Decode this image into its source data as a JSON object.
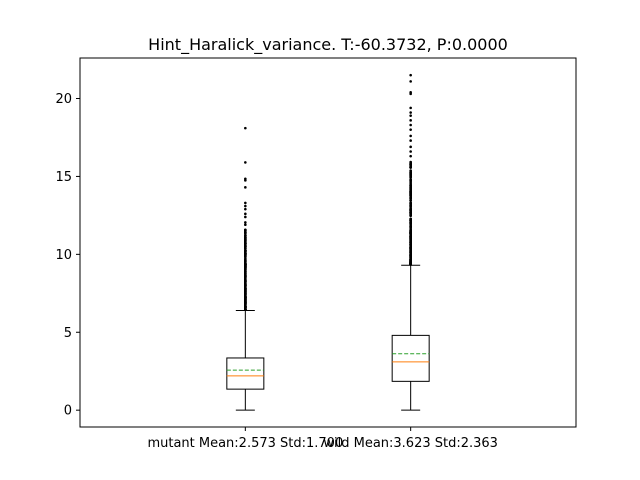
{
  "chart_data": {
    "type": "box",
    "title": "Hint_Haralick_variance. T:-60.3732, P:0.0000",
    "xlabel": "",
    "ylabel": "",
    "ylim": [
      -1.08,
      22.6
    ],
    "y_ticks": [
      0,
      5,
      10,
      15,
      20
    ],
    "y_tick_labels": [
      "0",
      "5",
      "10",
      "15",
      "20"
    ],
    "grid": false,
    "categories": [
      "mutant Mean:2.573 Std:1.700",
      "wild Mean:3.623 Std:2.363"
    ],
    "boxes": [
      {
        "category": "mutant Mean:2.573 Std:1.700",
        "whisker_low": 0.0,
        "q1": 1.35,
        "median": 2.2,
        "q3": 3.35,
        "whisker_high": 6.4,
        "mean": 2.573,
        "std": 1.7,
        "outlier_range": [
          6.45,
          11.6
        ],
        "sparse_outliers": [
          11.9,
          12.05,
          12.4,
          12.6,
          12.9,
          13.1,
          13.3,
          14.3,
          14.75,
          14.85,
          15.9,
          18.1
        ]
      },
      {
        "category": "wild Mean:3.623 Std:2.363",
        "whisker_low": 0.0,
        "q1": 1.85,
        "median": 3.1,
        "q3": 4.8,
        "whisker_high": 9.3,
        "mean": 3.623,
        "std": 2.363,
        "outlier_range": [
          9.35,
          16.0
        ],
        "sparse_outliers": [
          16.3,
          16.6,
          16.9,
          17.3,
          17.6,
          18.0,
          18.3,
          18.6,
          18.9,
          19.1,
          19.4,
          20.3,
          20.4,
          21.1,
          21.5
        ]
      }
    ],
    "colors": {
      "box": "#000000",
      "median": "#ff7f0e",
      "mean": "#2ca02c",
      "flier": "#000000"
    }
  }
}
